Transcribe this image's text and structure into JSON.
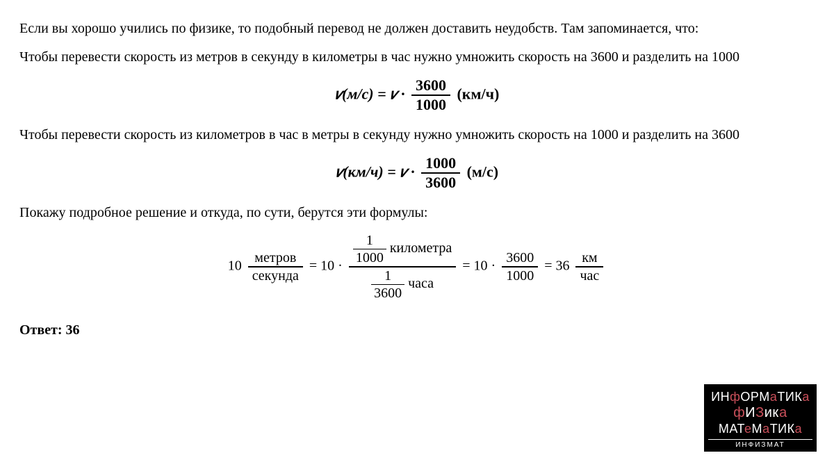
{
  "text": {
    "p1": "Если вы хорошо учились по физике, то подобный перевод не должен доставить неудобств. Там запоминается, что:",
    "p2": "Чтобы перевести скорость из метров в секунду в километры в час нужно умножить скорость на 3600 и разделить на 1000",
    "p3": "Чтобы перевести скорость из километров в час в метры в секунду нужно умножить скорость на 1000 и разделить на 3600",
    "p4": "Покажу подробное решение и откуда, по сути, берутся эти формулы:",
    "answer_label": "Ответ: 36"
  },
  "formula1": {
    "lhs": "𝑣(м/с) = 𝑣 ·",
    "num": "3600",
    "den": "1000",
    "unit": "(км/ч)"
  },
  "formula2": {
    "lhs": "𝑣(км/ч) = 𝑣 ·",
    "num": "1000",
    "den": "3600",
    "unit": "(м/с)"
  },
  "chain": {
    "a_val": "10",
    "a_num": "метров",
    "a_den": "секунда",
    "eq": " = ",
    "b_val": "10 ·",
    "b_top_num": "1",
    "b_top_den": "1000",
    "b_top_unit": "километра",
    "b_bot_num": "1",
    "b_bot_den": "3600",
    "b_bot_unit": "часа",
    "c_val": "10 ·",
    "c_num": "3600",
    "c_den": "1000",
    "d_val": "36",
    "d_num": "км",
    "d_den": "час"
  },
  "logo": {
    "line1_a": "ИН",
    "line1_b": "ф",
    "line1_c": "ОРМ",
    "line1_d": "а",
    "line1_e": "ТИК",
    "line1_f": "а",
    "line2_a": "ф",
    "line2_b": "И",
    "line2_c": "З",
    "line2_d": "ик",
    "line2_e": "а",
    "line3_a": "МАТ",
    "line3_b": "е",
    "line3_c": "М",
    "line3_d": "а",
    "line3_e": "ТИК",
    "line3_f": "а",
    "footer": "ИНФИЗМАТ"
  },
  "style": {
    "body_font_size": 20,
    "formula_font_size": 22,
    "text_color": "#000000",
    "background": "#ffffff",
    "logo_bg": "#000000",
    "logo_red": "#c94f5a",
    "logo_white": "#ffffff"
  }
}
